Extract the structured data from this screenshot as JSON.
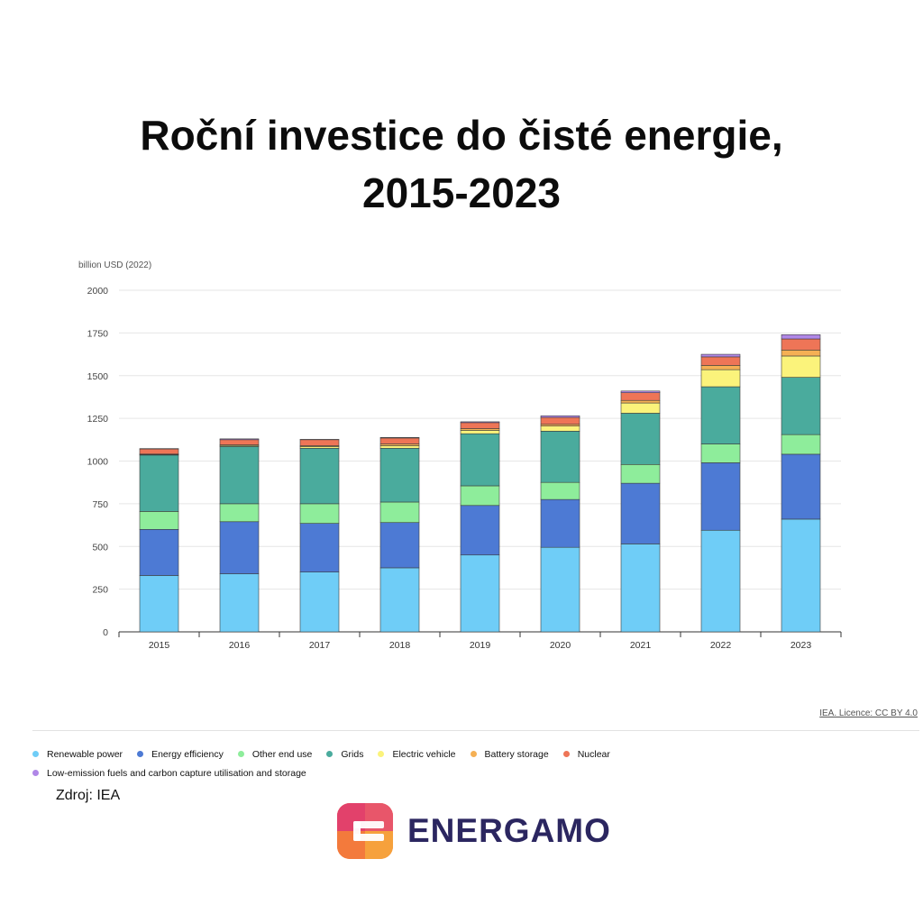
{
  "title_line1": "Roční investice do čisté energie,",
  "title_line2": "2015-2023",
  "licence": "IEA. Licence: CC BY 4.0",
  "source": "Zdroj: IEA",
  "brand": "ENERGAMO",
  "colors": {
    "renewable": "#6fcdf7",
    "efficiency": "#4d7ad4",
    "other": "#8eed9b",
    "grids": "#4aab9d",
    "ev": "#fbf37b",
    "battery": "#f5b054",
    "nuclear": "#ee7557",
    "lowemission": "#b087e7",
    "grid": "#e6e6e6",
    "axis": "#333333",
    "logo_pink": "#e2416b",
    "logo_orange": "#f37a3c",
    "logo_yellow": "#f6a13c"
  },
  "chart_data": {
    "type": "bar",
    "stacked": true,
    "ylabel": "billion USD (2022)",
    "ylim": [
      0,
      2000
    ],
    "yticks": [
      0,
      250,
      500,
      750,
      1000,
      1250,
      1500,
      1750,
      2000
    ],
    "grid": true,
    "legend_position": "bottom",
    "categories": [
      "2015",
      "2016",
      "2017",
      "2018",
      "2019",
      "2020",
      "2021",
      "2022",
      "2023"
    ],
    "series": [
      {
        "name": "Renewable power",
        "color": "#6fcdf7",
        "values": [
          330,
          340,
          350,
          375,
          450,
          495,
          515,
          595,
          660
        ]
      },
      {
        "name": "Energy efficiency",
        "color": "#4d7ad4",
        "values": [
          270,
          305,
          285,
          265,
          290,
          280,
          355,
          395,
          380
        ]
      },
      {
        "name": "Other end use",
        "color": "#8eed9b",
        "values": [
          105,
          105,
          115,
          120,
          115,
          100,
          110,
          110,
          115
        ]
      },
      {
        "name": "Grids",
        "color": "#4aab9d",
        "values": [
          330,
          335,
          325,
          315,
          305,
          300,
          300,
          335,
          335
        ]
      },
      {
        "name": "Electric vehicle",
        "color": "#fbf37b",
        "values": [
          3,
          6,
          10,
          15,
          20,
          30,
          60,
          100,
          125
        ]
      },
      {
        "name": "Battery storage",
        "color": "#f5b054",
        "values": [
          3,
          4,
          5,
          10,
          10,
          10,
          15,
          25,
          35
        ]
      },
      {
        "name": "Nuclear",
        "color": "#ee7557",
        "values": [
          30,
          30,
          35,
          35,
          35,
          40,
          45,
          50,
          65
        ]
      },
      {
        "name": "Low-emission fuels and carbon capture utilisation and storage",
        "color": "#b087e7",
        "values": [
          2,
          5,
          2,
          3,
          5,
          10,
          10,
          15,
          25
        ]
      }
    ]
  }
}
